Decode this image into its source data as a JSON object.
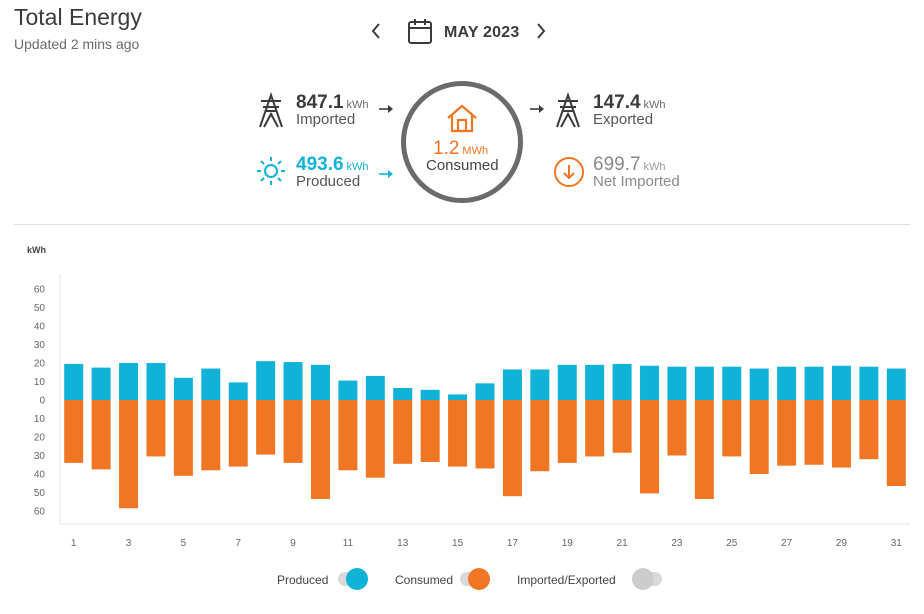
{
  "header": {
    "title": "Total Energy",
    "updated": "Updated 2 mins ago",
    "month": "MAY 2023"
  },
  "stats": {
    "imported": {
      "value": "847.1",
      "unit": "kWh",
      "label": "Imported"
    },
    "produced": {
      "value": "493.6",
      "unit": "kWh",
      "label": "Produced"
    },
    "consumed": {
      "value": "1.2",
      "unit": "MWh",
      "label": "Consumed"
    },
    "exported": {
      "value": "147.4",
      "unit": "kWh",
      "label": "Exported"
    },
    "net_imported": {
      "value": "699.7",
      "unit": "kWh",
      "label": "Net Imported"
    }
  },
  "icons": {
    "prev": "chevron-left-icon",
    "next": "chevron-right-icon",
    "calendar": "calendar-icon",
    "imported": "power-tower-icon",
    "exported": "power-tower-icon",
    "produced": "sun-icon",
    "consumed": "house-icon",
    "net_imported": "down-arrow-circle-icon"
  },
  "colors": {
    "produced": "#11b2d8",
    "consumed": "#f07623",
    "imported_exported": "#cccccc",
    "ring": "#6b6b6b",
    "text": "#3b3b3b"
  },
  "legend": [
    {
      "label": "Produced",
      "color": "#11b2d8",
      "on": true
    },
    {
      "label": "Consumed",
      "color": "#f07623",
      "on": true
    },
    {
      "label": "Imported/Exported",
      "color": "#cccccc",
      "on": false
    }
  ],
  "chart_data": {
    "type": "bar",
    "ylabel": "kWh",
    "ylim": [
      -60,
      60
    ],
    "yticks": [
      60,
      50,
      40,
      30,
      20,
      10,
      0,
      -10,
      -20,
      -30,
      -40,
      -50,
      -60
    ],
    "ytick_labels": [
      "60",
      "50",
      "40",
      "30",
      "20",
      "10",
      "0",
      "10",
      "20",
      "30",
      "40",
      "50",
      "60"
    ],
    "x": [
      1,
      2,
      3,
      4,
      5,
      6,
      7,
      8,
      9,
      10,
      11,
      12,
      13,
      14,
      15,
      16,
      17,
      18,
      19,
      20,
      21,
      22,
      23,
      24,
      25,
      26,
      27,
      28,
      29,
      30,
      31
    ],
    "xtick_labels": [
      "1",
      "3",
      "5",
      "7",
      "9",
      "11",
      "13",
      "15",
      "17",
      "19",
      "21",
      "23",
      "25",
      "27",
      "29",
      "31"
    ],
    "series": [
      {
        "name": "Produced",
        "color": "#11b2d8",
        "values": [
          19.5,
          17.5,
          20,
          20,
          12,
          17,
          9.5,
          21,
          20.5,
          19,
          10.5,
          13,
          6.5,
          5.5,
          3,
          9,
          16.5,
          16.5,
          19,
          19,
          19.5,
          18.5,
          18,
          18,
          18,
          17,
          18,
          18,
          18.5,
          18,
          17
        ]
      },
      {
        "name": "Consumed",
        "color": "#f07623",
        "values": [
          -34,
          -37.5,
          -58.5,
          -30.5,
          -41,
          -38,
          -36,
          -29.5,
          -34,
          -53.5,
          -38,
          -42,
          -34.5,
          -33.5,
          -36,
          -37,
          -52,
          -38.5,
          -34,
          -30.5,
          -28.5,
          -50.5,
          -30,
          -53.5,
          -30.5,
          -40,
          -35.5,
          -35,
          -36.5,
          -32,
          -46.5
        ]
      }
    ]
  }
}
